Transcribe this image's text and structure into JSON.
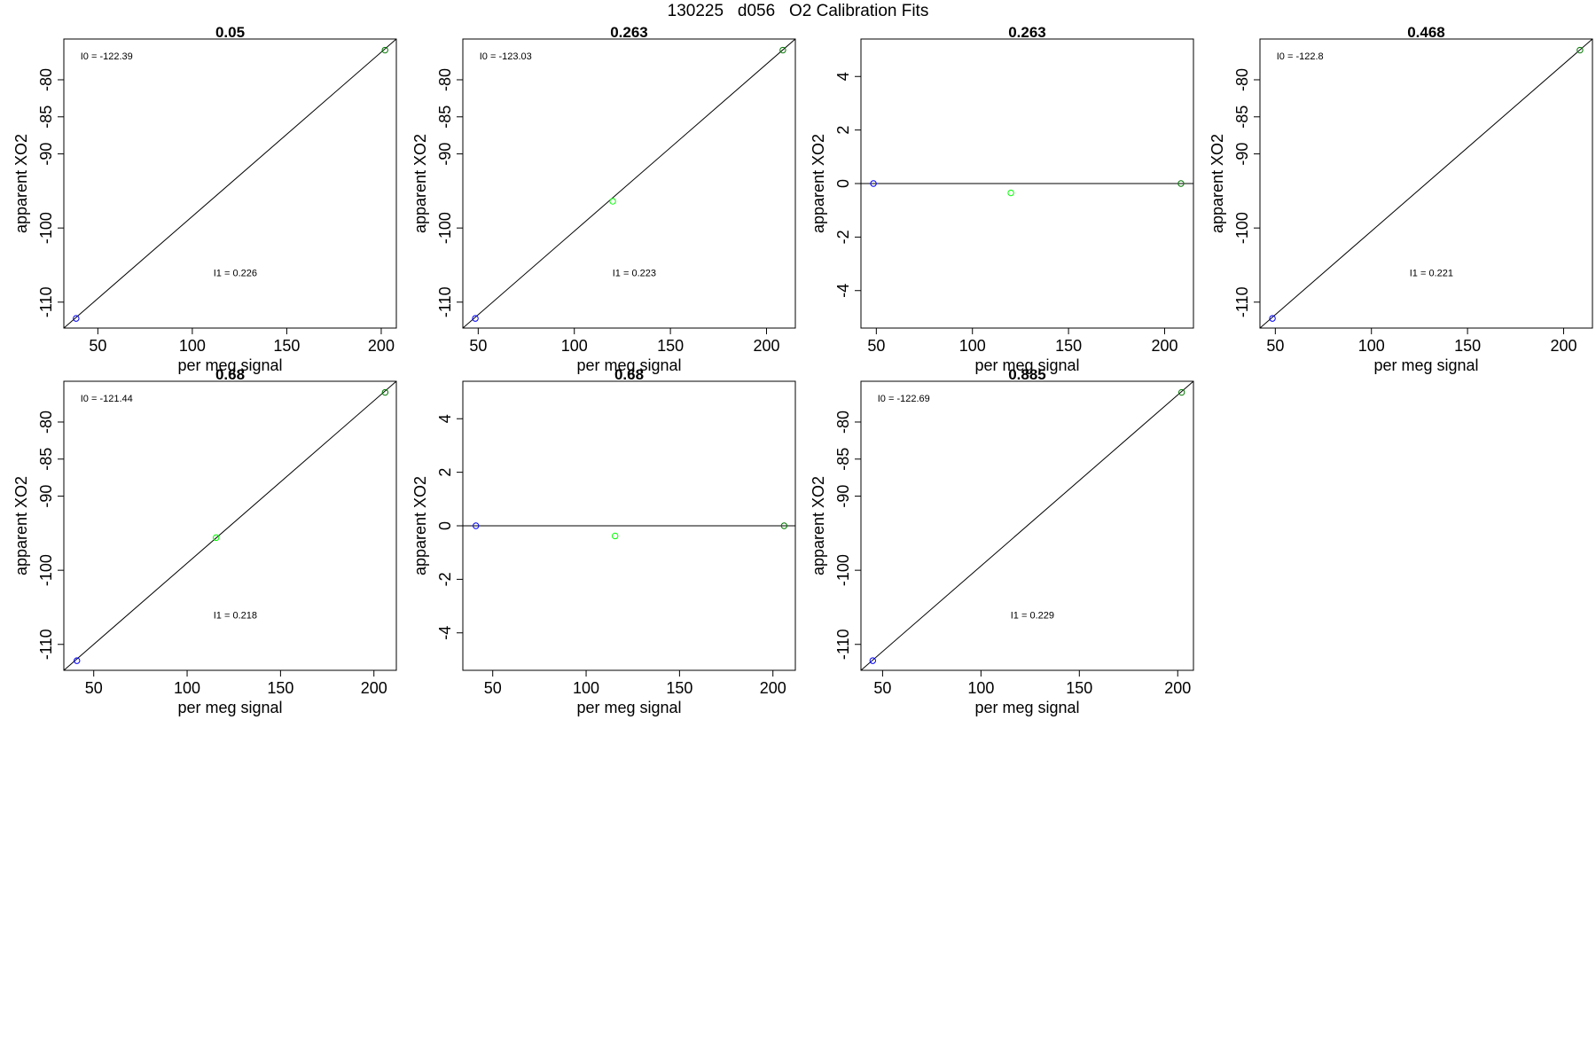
{
  "page": {
    "title": "130225   d056   O2 Calibration Fits"
  },
  "colors": {
    "axis": "#000000",
    "fit_line": "#000000",
    "point_low": "#0000ff",
    "point_mid": "#00ff00",
    "point_high": "#007700"
  },
  "chart_data": [
    {
      "type": "scatter",
      "title": "0.05",
      "xlabel": "per meg signal",
      "ylabel": "apparent XO2",
      "xlim": [
        32,
        208
      ],
      "ylim": [
        -113.5,
        -74.5
      ],
      "xticks": [
        50,
        100,
        150,
        200
      ],
      "yticks": [
        -110,
        -100,
        -90,
        -85,
        -80
      ],
      "points": [
        {
          "x": 38.5,
          "y": -112.2,
          "color": "point_low"
        },
        {
          "x": 202,
          "y": -76.0,
          "color": "point_high"
        }
      ],
      "fit_line": [
        [
          32,
          -113.5
        ],
        [
          208,
          -74.5
        ]
      ],
      "annotations": [
        {
          "label": "I0 = ",
          "value": "-122.39"
        },
        {
          "label": "I1 = ",
          "value": "0.226"
        }
      ]
    },
    {
      "type": "scatter",
      "title": "0.263",
      "xlabel": "per meg signal",
      "ylabel": "apparent XO2",
      "xlim": [
        42,
        215
      ],
      "ylim": [
        -113.5,
        -74.5
      ],
      "xticks": [
        50,
        100,
        150,
        200
      ],
      "yticks": [
        -110,
        -100,
        -90,
        -85,
        -80
      ],
      "points": [
        {
          "x": 48.5,
          "y": -112.2,
          "color": "point_low"
        },
        {
          "x": 120,
          "y": -96.4,
          "color": "point_mid"
        },
        {
          "x": 208.5,
          "y": -76.0,
          "color": "point_high"
        }
      ],
      "fit_line": [
        [
          42,
          -113.5
        ],
        [
          215,
          -74.5
        ]
      ],
      "annotations": [
        {
          "label": "I0 = ",
          "value": "-123.03"
        },
        {
          "label": "I1 = ",
          "value": "0.223"
        }
      ]
    },
    {
      "type": "scatter",
      "title": "0.263",
      "xlabel": "per meg signal",
      "ylabel": "apparent XO2",
      "xlim": [
        42,
        215
      ],
      "ylim": [
        -5.4,
        5.4
      ],
      "xticks": [
        50,
        100,
        150,
        200
      ],
      "yticks": [
        -4,
        -2,
        0,
        2,
        4
      ],
      "points": [
        {
          "x": 48.5,
          "y": 0.0,
          "color": "point_low"
        },
        {
          "x": 120,
          "y": -0.35,
          "color": "point_mid"
        },
        {
          "x": 208.5,
          "y": 0.0,
          "color": "point_high"
        }
      ],
      "fit_line": [
        [
          42,
          0
        ],
        [
          215,
          0
        ]
      ],
      "annotations": []
    },
    {
      "type": "scatter",
      "title": "0.468",
      "xlabel": "per meg signal",
      "ylabel": "apparent XO2",
      "xlim": [
        42,
        215
      ],
      "ylim": [
        -113.5,
        -74.5
      ],
      "xticks": [
        50,
        100,
        150,
        200
      ],
      "yticks": [
        -110,
        -100,
        -90,
        -85,
        -80
      ],
      "points": [
        {
          "x": 48.5,
          "y": -112.2,
          "color": "point_low"
        },
        {
          "x": 208.5,
          "y": -76.0,
          "color": "point_high"
        }
      ],
      "fit_line": [
        [
          42,
          -113.5
        ],
        [
          215,
          -74.5
        ]
      ],
      "annotations": [
        {
          "label": "I0 = ",
          "value": "-122.8"
        },
        {
          "label": "I1 = ",
          "value": "0.221"
        }
      ]
    },
    {
      "type": "scatter",
      "title": "0.68",
      "xlabel": "per meg signal",
      "ylabel": "apparent XO2",
      "xlim": [
        34,
        212
      ],
      "ylim": [
        -113.5,
        -74.5
      ],
      "xticks": [
        50,
        100,
        150,
        200
      ],
      "yticks": [
        -110,
        -100,
        -90,
        -85,
        -80
      ],
      "points": [
        {
          "x": 41,
          "y": -112.2,
          "color": "point_low"
        },
        {
          "x": 115.5,
          "y": -95.6,
          "color": "point_mid"
        },
        {
          "x": 206,
          "y": -76.0,
          "color": "point_high"
        }
      ],
      "fit_line": [
        [
          34,
          -113.5
        ],
        [
          212,
          -74.5
        ]
      ],
      "annotations": [
        {
          "label": "I0 = ",
          "value": "-121.44"
        },
        {
          "label": "I1 = ",
          "value": "0.218"
        }
      ]
    },
    {
      "type": "scatter",
      "title": "0.68",
      "xlabel": "per meg signal",
      "ylabel": "apparent XO2",
      "xlim": [
        34,
        212
      ],
      "ylim": [
        -5.4,
        5.4
      ],
      "xticks": [
        50,
        100,
        150,
        200
      ],
      "yticks": [
        -4,
        -2,
        0,
        2,
        4
      ],
      "points": [
        {
          "x": 41,
          "y": 0.0,
          "color": "point_low"
        },
        {
          "x": 115.5,
          "y": -0.38,
          "color": "point_mid"
        },
        {
          "x": 206,
          "y": 0.0,
          "color": "point_high"
        }
      ],
      "fit_line": [
        [
          34,
          0
        ],
        [
          212,
          0
        ]
      ],
      "annotations": []
    },
    {
      "type": "scatter",
      "title": "0.885",
      "xlabel": "per meg signal",
      "ylabel": "apparent XO2",
      "xlim": [
        39,
        208
      ],
      "ylim": [
        -113.5,
        -74.5
      ],
      "xticks": [
        50,
        100,
        150,
        200
      ],
      "yticks": [
        -110,
        -100,
        -90,
        -85,
        -80
      ],
      "points": [
        {
          "x": 45,
          "y": -112.2,
          "color": "point_low"
        },
        {
          "x": 202,
          "y": -76.0,
          "color": "point_high"
        }
      ],
      "fit_line": [
        [
          39,
          -113.5
        ],
        [
          208,
          -74.5
        ]
      ],
      "annotations": [
        {
          "label": "I0 = ",
          "value": "-122.69"
        },
        {
          "label": "I1 = ",
          "value": "0.229"
        }
      ]
    }
  ]
}
